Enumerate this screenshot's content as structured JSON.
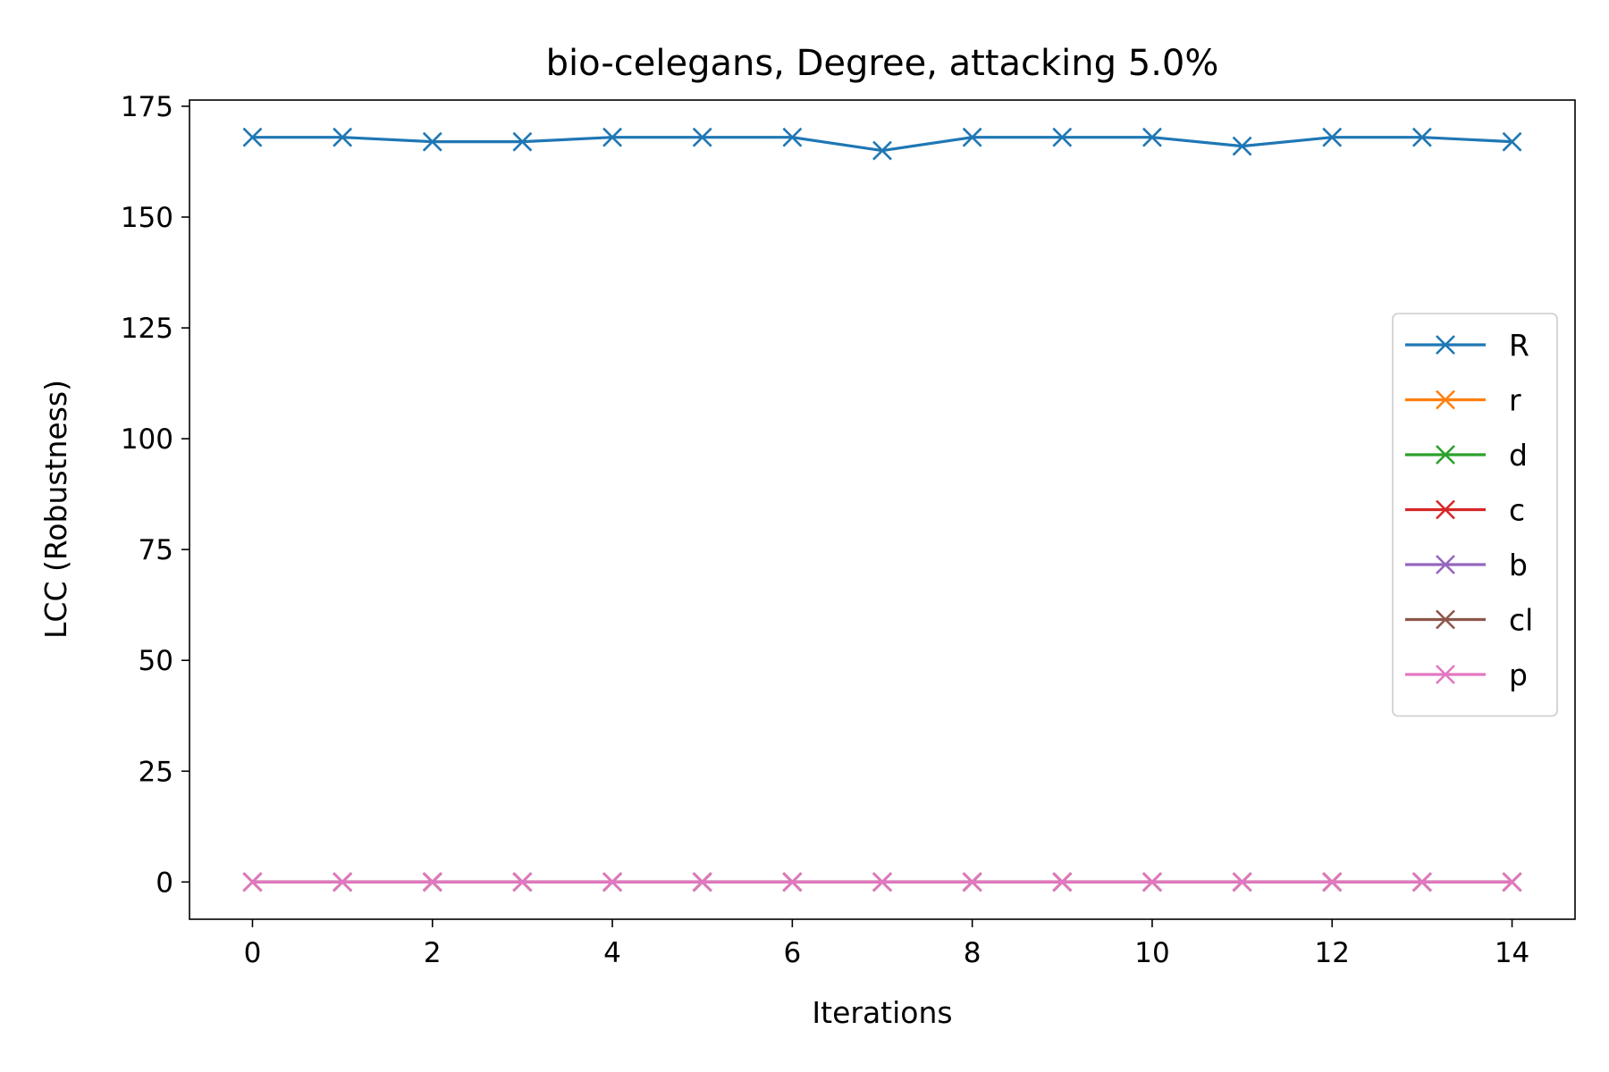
{
  "chart_data": {
    "type": "line",
    "title": "bio-celegans, Degree, attacking 5.0%",
    "xlabel": "Iterations",
    "ylabel": "LCC (Robustness)",
    "x": [
      0,
      1,
      2,
      3,
      4,
      5,
      6,
      7,
      8,
      9,
      10,
      11,
      12,
      13,
      14
    ],
    "xlim": [
      -0.7,
      14.7
    ],
    "ylim": [
      -8.4,
      176.4
    ],
    "xticks": [
      0,
      2,
      4,
      6,
      8,
      10,
      12,
      14
    ],
    "yticks": [
      0,
      25,
      50,
      75,
      100,
      125,
      150,
      175
    ],
    "grid": false,
    "legend_position": "center-right",
    "marker": "x",
    "series": [
      {
        "name": "R",
        "color": "#1f77b4",
        "values": [
          168,
          168,
          167,
          167,
          168,
          168,
          168,
          165,
          168,
          168,
          168,
          166,
          168,
          168,
          167
        ]
      },
      {
        "name": "r",
        "color": "#ff7f0e",
        "values": [
          0,
          0,
          0,
          0,
          0,
          0,
          0,
          0,
          0,
          0,
          0,
          0,
          0,
          0,
          0
        ]
      },
      {
        "name": "d",
        "color": "#2ca02c",
        "values": [
          0,
          0,
          0,
          0,
          0,
          0,
          0,
          0,
          0,
          0,
          0,
          0,
          0,
          0,
          0
        ]
      },
      {
        "name": "c",
        "color": "#d62728",
        "values": [
          0,
          0,
          0,
          0,
          0,
          0,
          0,
          0,
          0,
          0,
          0,
          0,
          0,
          0,
          0
        ]
      },
      {
        "name": "b",
        "color": "#9467bd",
        "values": [
          0,
          0,
          0,
          0,
          0,
          0,
          0,
          0,
          0,
          0,
          0,
          0,
          0,
          0,
          0
        ]
      },
      {
        "name": "cl",
        "color": "#8c564b",
        "values": [
          0,
          0,
          0,
          0,
          0,
          0,
          0,
          0,
          0,
          0,
          0,
          0,
          0,
          0,
          0
        ]
      },
      {
        "name": "p",
        "color": "#e377c2",
        "values": [
          0,
          0,
          0,
          0,
          0,
          0,
          0,
          0,
          0,
          0,
          0,
          0,
          0,
          0,
          0
        ]
      }
    ]
  }
}
